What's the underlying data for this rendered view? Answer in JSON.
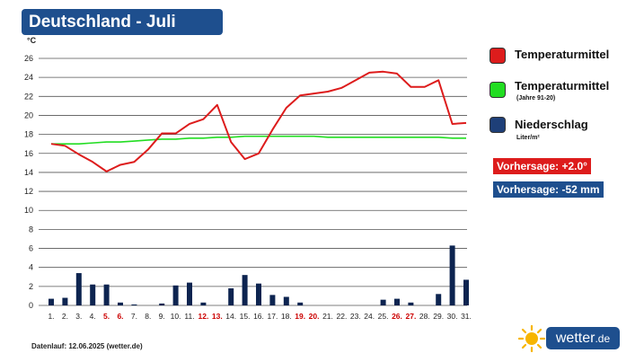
{
  "title": "Deutschland - Juli",
  "legend": {
    "temp": "Temperaturmittel",
    "temp_norm": "Temperaturmittel",
    "temp_norm_sub": "(Jahre 91-20)",
    "precip": "Niederschlag",
    "precip_sub": "Liter/m²"
  },
  "forecast": {
    "temp": "Vorhersage: +2.0°",
    "precip": "Vorhersage: -52 mm"
  },
  "footer": "Datenlauf: 12.06.2025 (wetter.de)",
  "logo": {
    "text_main": "wetter",
    "text_suffix": ".de"
  },
  "colors": {
    "temp": "#dd1c1c",
    "temp_norm": "#22dd22",
    "precip": "#0d2450",
    "title_bg": "#1e4f8e",
    "weekend": "#cc0000",
    "forecast_precip_bg": "#1e4f8e",
    "sun": "#f7b500"
  },
  "chart_data": {
    "type": "line",
    "ylabel": "°C",
    "ylim": [
      0,
      26
    ],
    "yticks": [
      0,
      2,
      4,
      6,
      8,
      10,
      12,
      14,
      16,
      18,
      20,
      22,
      24,
      26
    ],
    "categories": [
      "1.",
      "2.",
      "3.",
      "4.",
      "5.",
      "6.",
      "7.",
      "8.",
      "9.",
      "10.",
      "11.",
      "12.",
      "13.",
      "14.",
      "15.",
      "16.",
      "17.",
      "18.",
      "19.",
      "20.",
      "21.",
      "22.",
      "23.",
      "24.",
      "25.",
      "26.",
      "27.",
      "28.",
      "29.",
      "30.",
      "31."
    ],
    "weekend_days": [
      5,
      6,
      12,
      13,
      19,
      20,
      26,
      27
    ],
    "grid": true,
    "series": [
      {
        "name": "Temperaturmittel",
        "kind": "line",
        "values": [
          17.0,
          16.8,
          15.9,
          15.1,
          14.1,
          14.8,
          15.1,
          16.4,
          18.1,
          18.1,
          19.1,
          19.6,
          21.1,
          17.2,
          15.4,
          16.0,
          18.5,
          20.8,
          22.1,
          22.3,
          22.5,
          22.9,
          23.7,
          24.5,
          24.6,
          24.4,
          23.0,
          23.0,
          23.7,
          19.1,
          19.2
        ]
      },
      {
        "name": "Temperaturmittel (Jahre 91-20)",
        "kind": "line",
        "values": [
          17.0,
          17.0,
          17.0,
          17.1,
          17.2,
          17.2,
          17.3,
          17.4,
          17.5,
          17.5,
          17.6,
          17.6,
          17.7,
          17.7,
          17.8,
          17.8,
          17.8,
          17.8,
          17.8,
          17.8,
          17.7,
          17.7,
          17.7,
          17.7,
          17.7,
          17.7,
          17.7,
          17.7,
          17.7,
          17.6,
          17.6
        ]
      },
      {
        "name": "Niederschlag",
        "kind": "bar",
        "values": [
          0.7,
          0.8,
          3.4,
          2.2,
          2.2,
          0.3,
          0.1,
          0.0,
          0.2,
          2.1,
          2.4,
          0.3,
          0.0,
          1.8,
          3.2,
          2.3,
          1.1,
          0.9,
          0.3,
          0.0,
          0.0,
          0.0,
          0.0,
          0.0,
          0.6,
          0.7,
          0.3,
          0.0,
          1.2,
          6.3,
          2.7
        ]
      }
    ]
  }
}
